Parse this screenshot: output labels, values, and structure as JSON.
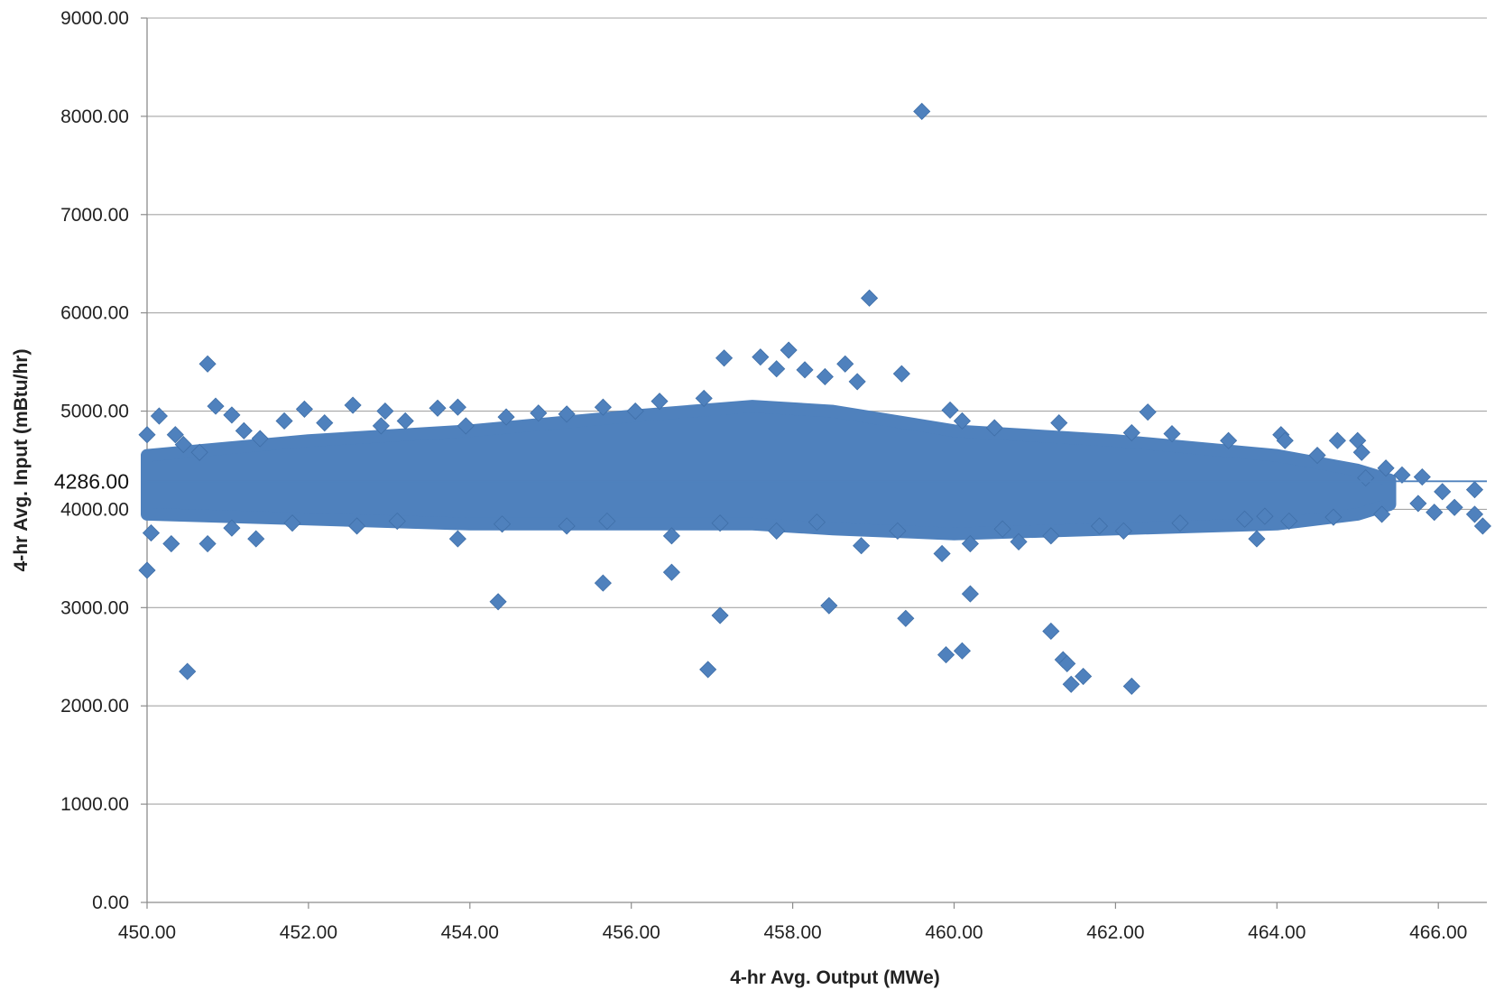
{
  "chart_data": {
    "type": "scatter",
    "title": "",
    "xlabel": "4-hr Avg. Output (MWe)",
    "ylabel": "4-hr Avg. Input (mBtu/hr)",
    "xlim": [
      450,
      466.6
    ],
    "ylim": [
      0,
      9000
    ],
    "x_ticks": [
      "450.00",
      "452.00",
      "454.00",
      "456.00",
      "458.00",
      "460.00",
      "462.00",
      "464.00",
      "466.00"
    ],
    "y_ticks": [
      "0.00",
      "1000.00",
      "2000.00",
      "3000.00",
      "4000.00",
      "5000.00",
      "6000.00",
      "7000.00",
      "8000.00",
      "9000.00"
    ],
    "grid": true,
    "legend": "none",
    "marker": "diamond",
    "marker_color": "#4F81BD",
    "reference_line": {
      "y": 4286,
      "label": "4286.00",
      "color": "#4F81BD"
    },
    "dense_band": [
      [
        450.0,
        3950,
        4550
      ],
      [
        452.0,
        3900,
        4700
      ],
      [
        454.0,
        3850,
        4800
      ],
      [
        456.0,
        3850,
        4950
      ],
      [
        457.5,
        3850,
        5050
      ],
      [
        458.5,
        3800,
        5000
      ],
      [
        460.0,
        3750,
        4800
      ],
      [
        462.0,
        3800,
        4700
      ],
      [
        464.0,
        3850,
        4550
      ],
      [
        465.0,
        3950,
        4400
      ],
      [
        465.4,
        4050,
        4300
      ]
    ],
    "series": [
      {
        "values": [
          [
            459.6,
            8050
          ],
          [
            458.95,
            6150
          ],
          [
            457.95,
            5620
          ],
          [
            457.6,
            5550
          ],
          [
            457.15,
            5540
          ],
          [
            450.75,
            5480
          ],
          [
            459.35,
            5380
          ],
          [
            457.8,
            5430
          ],
          [
            458.65,
            5480
          ],
          [
            458.15,
            5420
          ],
          [
            458.8,
            5300
          ],
          [
            458.4,
            5350
          ],
          [
            450.85,
            5050
          ],
          [
            452.55,
            5060
          ],
          [
            452.95,
            5000
          ],
          [
            451.95,
            5020
          ],
          [
            453.6,
            5030
          ],
          [
            453.85,
            5040
          ],
          [
            454.45,
            4940
          ],
          [
            454.85,
            4980
          ],
          [
            455.2,
            4970
          ],
          [
            455.65,
            5040
          ],
          [
            456.05,
            5000
          ],
          [
            456.35,
            5100
          ],
          [
            456.9,
            5130
          ],
          [
            459.95,
            5010
          ],
          [
            460.1,
            4900
          ],
          [
            462.4,
            4990
          ],
          [
            450.15,
            4950
          ],
          [
            450.0,
            4760
          ],
          [
            450.35,
            4760
          ],
          [
            450.45,
            4660
          ],
          [
            450.65,
            4580
          ],
          [
            451.2,
            4800
          ],
          [
            451.4,
            4720
          ],
          [
            451.05,
            4960
          ],
          [
            451.7,
            4900
          ],
          [
            452.2,
            4880
          ],
          [
            452.9,
            4850
          ],
          [
            453.2,
            4900
          ],
          [
            453.95,
            4850
          ],
          [
            460.5,
            4830
          ],
          [
            461.3,
            4880
          ],
          [
            462.2,
            4780
          ],
          [
            462.7,
            4770
          ],
          [
            463.4,
            4700
          ],
          [
            464.05,
            4760
          ],
          [
            464.1,
            4700
          ],
          [
            464.75,
            4700
          ],
          [
            465.0,
            4700
          ],
          [
            465.05,
            4580
          ],
          [
            464.5,
            4550
          ],
          [
            465.35,
            4420
          ],
          [
            465.55,
            4350
          ],
          [
            465.8,
            4330
          ],
          [
            465.1,
            4320
          ],
          [
            466.05,
            4180
          ],
          [
            466.45,
            4200
          ],
          [
            465.75,
            4060
          ],
          [
            466.2,
            4020
          ],
          [
            465.95,
            3970
          ],
          [
            466.45,
            3950
          ],
          [
            466.55,
            3830
          ],
          [
            465.3,
            3950
          ],
          [
            464.7,
            3920
          ],
          [
            464.15,
            3880
          ],
          [
            463.85,
            3930
          ],
          [
            463.75,
            3700
          ],
          [
            462.1,
            3780
          ],
          [
            461.2,
            3730
          ],
          [
            460.8,
            3670
          ],
          [
            460.2,
            3650
          ],
          [
            459.85,
            3550
          ],
          [
            458.85,
            3630
          ],
          [
            457.8,
            3780
          ],
          [
            456.5,
            3730
          ],
          [
            455.2,
            3830
          ],
          [
            453.85,
            3700
          ],
          [
            451.35,
            3700
          ],
          [
            450.75,
            3650
          ],
          [
            450.3,
            3650
          ],
          [
            450.05,
            3760
          ],
          [
            450.0,
            3380
          ],
          [
            451.05,
            3810
          ],
          [
            451.8,
            3860
          ],
          [
            452.6,
            3830
          ],
          [
            453.1,
            3880
          ],
          [
            454.4,
            3850
          ],
          [
            455.7,
            3880
          ],
          [
            457.1,
            3860
          ],
          [
            458.3,
            3870
          ],
          [
            459.3,
            3780
          ],
          [
            460.6,
            3800
          ],
          [
            461.8,
            3830
          ],
          [
            462.8,
            3860
          ],
          [
            463.6,
            3900
          ],
          [
            455.65,
            3250
          ],
          [
            456.5,
            3360
          ],
          [
            454.35,
            3060
          ],
          [
            458.45,
            3020
          ],
          [
            460.2,
            3140
          ],
          [
            457.1,
            2920
          ],
          [
            459.4,
            2890
          ],
          [
            461.2,
            2760
          ],
          [
            461.35,
            2470
          ],
          [
            461.4,
            2430
          ],
          [
            459.9,
            2520
          ],
          [
            460.1,
            2560
          ],
          [
            461.6,
            2300
          ],
          [
            461.45,
            2220
          ],
          [
            462.2,
            2200
          ],
          [
            456.95,
            2370
          ],
          [
            450.5,
            2350
          ]
        ]
      }
    ]
  }
}
